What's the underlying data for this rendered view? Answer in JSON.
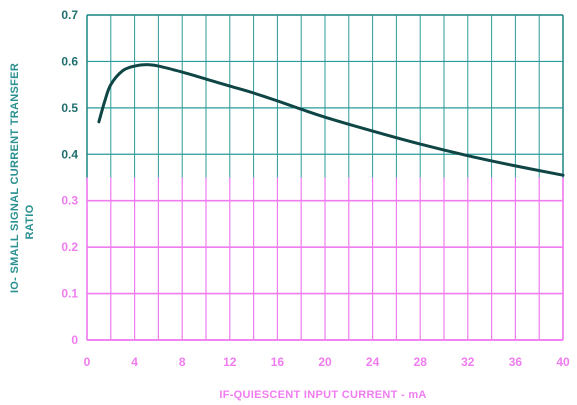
{
  "chart_data": {
    "type": "line",
    "title": "",
    "xlabel": "IF-QUIESCENT INPUT CURRENT - mA",
    "ylabel_line1": "IO- SMALL SIGNAL CURRENT TRANSFER",
    "ylabel_line2": "RATIO",
    "xlim": [
      0,
      40
    ],
    "ylim": [
      0,
      0.7
    ],
    "x_ticks": [
      0,
      4,
      8,
      12,
      16,
      20,
      24,
      28,
      32,
      36,
      40
    ],
    "x_tick_labels": [
      "0",
      "4",
      "8",
      "12",
      "16",
      "20",
      "24",
      "28",
      "32",
      "36",
      "40"
    ],
    "y_ticks": [
      0,
      0.1,
      0.2,
      0.3,
      0.4,
      0.5,
      0.6,
      0.7
    ],
    "y_tick_labels": [
      "0",
      "0.1",
      "0.2",
      "0.3",
      "0.4",
      "0.5",
      "0.6",
      "0.7"
    ],
    "x_grid_lines": [
      0,
      2,
      4,
      6,
      8,
      10,
      12,
      14,
      16,
      18,
      20,
      22,
      24,
      26,
      28,
      30,
      32,
      34,
      36,
      38,
      40
    ],
    "grid": true,
    "series": [
      {
        "x": [
          1,
          1.5,
          2,
          3,
          4,
          5,
          6,
          8,
          10,
          12,
          14,
          16,
          18,
          20,
          24,
          28,
          32,
          36,
          40
        ],
        "y": [
          0.47,
          0.515,
          0.55,
          0.58,
          0.59,
          0.593,
          0.59,
          0.577,
          0.562,
          0.547,
          0.532,
          0.515,
          0.497,
          0.48,
          0.45,
          0.422,
          0.397,
          0.375,
          0.355
        ]
      }
    ],
    "colors": {
      "upper_grid": "#2a9a9a",
      "lower_grid": "#f07cf0",
      "curve": "#0f4545",
      "frame": "#2a8a8a"
    }
  }
}
